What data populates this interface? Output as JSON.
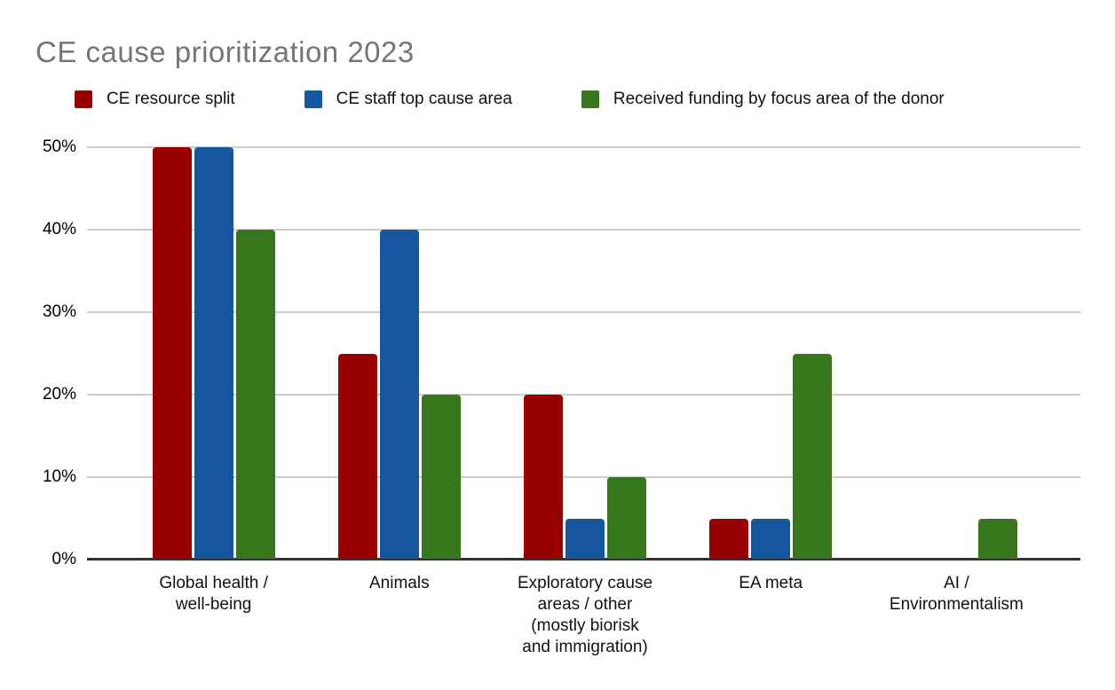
{
  "title": "CE cause prioritization 2023",
  "chart_data": {
    "type": "bar",
    "title": "CE cause prioritization 2023",
    "categories": [
      "Global health / well-being",
      "Animals",
      "Exploratory cause areas / other (mostly biorisk and immigration)",
      "EA meta",
      "AI / Environmentalism"
    ],
    "category_label_lines": [
      [
        "Global health /",
        "well-being"
      ],
      [
        "Animals"
      ],
      [
        "Exploratory cause",
        "areas / other",
        "(mostly biorisk",
        "and immigration)"
      ],
      [
        "EA meta"
      ],
      [
        "AI /",
        "Environmentalism"
      ]
    ],
    "series": [
      {
        "name": "CE resource split",
        "color": "#990000",
        "values": [
          50,
          25,
          20,
          5,
          0
        ]
      },
      {
        "name": "CE staff top cause area",
        "color": "#15569e",
        "values": [
          50,
          40,
          5,
          5,
          0
        ]
      },
      {
        "name": "Received funding by focus area of the donor",
        "color": "#38761d",
        "values": [
          40,
          20,
          10,
          25,
          5
        ]
      }
    ],
    "xlabel": "",
    "ylabel": "",
    "ylim": [
      0,
      50
    ],
    "ytick_step": 10,
    "ytick_labels": [
      "0%",
      "10%",
      "20%",
      "30%",
      "40%",
      "50%"
    ],
    "grid": true,
    "legend_position": "top"
  },
  "colors": {
    "background": "#ffffff",
    "title_text": "#757575",
    "grid": "#cccccc",
    "axis": "#333333",
    "text": "#111111"
  }
}
